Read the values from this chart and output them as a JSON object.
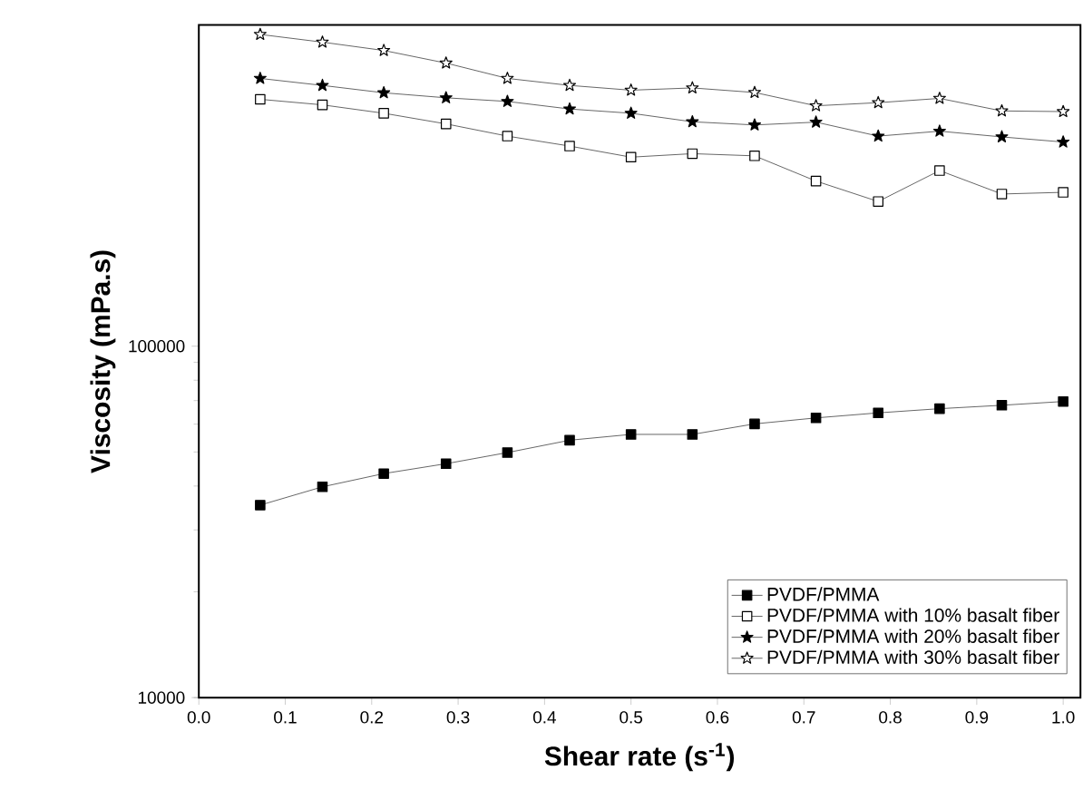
{
  "chart_data": {
    "type": "line",
    "xlabel": "Shear rate (s$^{-1}$)",
    "ylabel": "Viscosity (mPa.s)",
    "x": [
      0.071,
      0.143,
      0.214,
      0.286,
      0.357,
      0.429,
      0.5,
      0.571,
      0.643,
      0.714,
      0.786,
      0.857,
      0.929,
      1.0
    ],
    "series": [
      {
        "name": "PVDF/PMMA",
        "color": "#000000",
        "marker": "square",
        "values": [
          35300,
          39800,
          43400,
          46300,
          49800,
          54000,
          56100,
          56100,
          60100,
          62500,
          64600,
          66400,
          67900,
          69600
        ]
      },
      {
        "name": "PVDF/PMMA with 10% basalt fiber",
        "color": "#000000",
        "marker": "square",
        "values": [
          504000,
          486000,
          460000,
          429000,
          396000,
          371000,
          345000,
          353000,
          348000,
          295000,
          258000,
          316000,
          271000,
          274000
        ]
      },
      {
        "name": "PVDF/PMMA with 20% basalt fiber",
        "color": "#000000",
        "marker": "star",
        "values": [
          578000,
          552000,
          526000,
          509000,
          497000,
          473000,
          460000,
          435000,
          426000,
          434000,
          396000,
          409000,
          394000,
          381000
        ]
      },
      {
        "name": "PVDF/PMMA with 30% basalt fiber",
        "color": "#000000",
        "marker": "star",
        "values": [
          771000,
          733000,
          694000,
          639000,
          578000,
          552000,
          535000,
          543000,
          527000,
          483000,
          493000,
          507000,
          467000,
          465000
        ]
      }
    ],
    "log": "y",
    "xlim": [
      0,
      1.02
    ],
    "ylim": [
      10000,
      820000
    ],
    "xticks": [
      {
        "value": 0,
        "label": "0.0"
      },
      0.1,
      0.2,
      0.3,
      0.4,
      0.5,
      0.6,
      0.7,
      0.8,
      0.9,
      {
        "value": 1,
        "label": "1.0"
      }
    ],
    "yticks": [
      10000,
      100000
    ],
    "legend": "bottom right",
    "grid": false,
    "line_style": "solid"
  }
}
